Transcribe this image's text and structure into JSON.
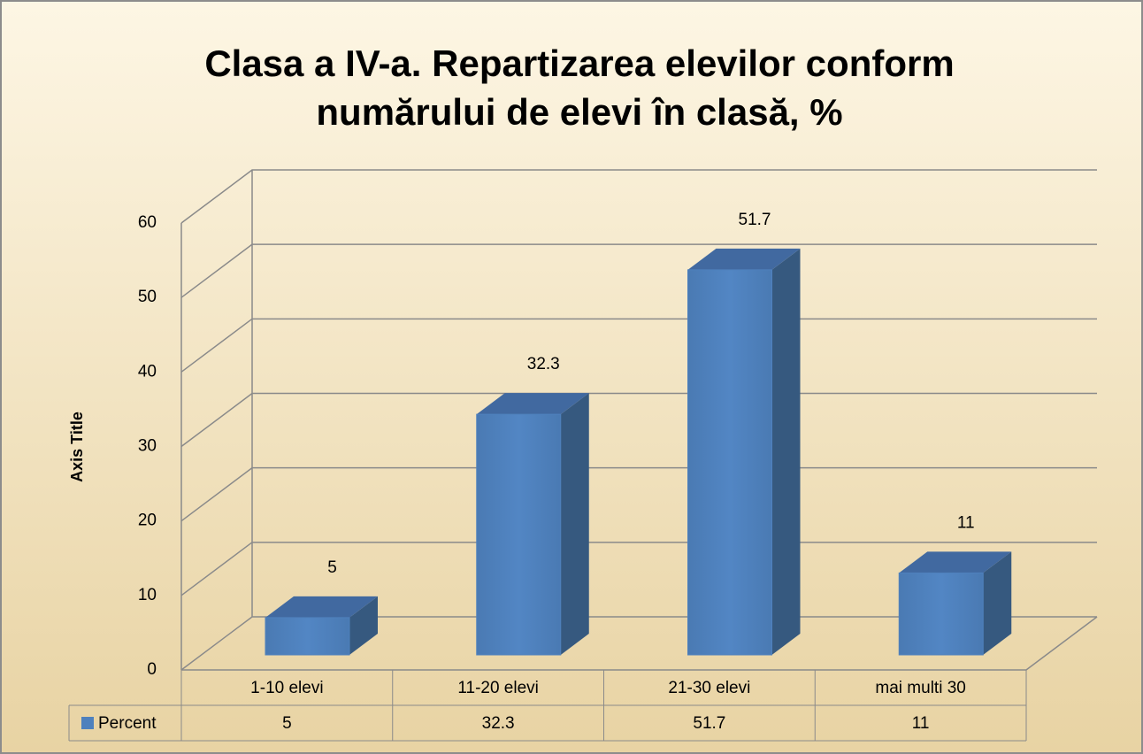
{
  "chart_data": {
    "type": "bar3d",
    "title": [
      "Clasa a IV-a. Repartizarea elevilor  conform",
      "numărului de elevi în clasă, %"
    ],
    "y_axis_label": "Axis Title",
    "categories": [
      "1-10 elevi",
      "11-20 elevi",
      "21-30 elevi",
      "mai multi 30"
    ],
    "series": [
      {
        "name": "Percent",
        "color": "#4f81bd",
        "values": [
          5,
          32.3,
          51.7,
          11
        ]
      }
    ],
    "ylim": [
      0,
      60
    ],
    "yticks": [
      0,
      10,
      20,
      30,
      40,
      50,
      60
    ],
    "grid": true,
    "data_table": true
  }
}
